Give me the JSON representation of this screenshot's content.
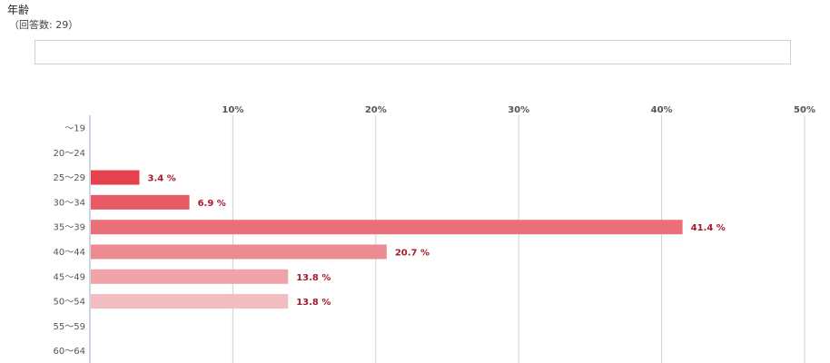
{
  "header": {
    "title": "年齢",
    "subtitle": "（回答数: 29）"
  },
  "colors": {
    "bars": [
      "#e2303d",
      "#e2303d",
      "#e4424f",
      "#e75a66",
      "#ea6f78",
      "#ed8b92",
      "#f0a4a9",
      "#f3bcc0",
      "#f3bcc0",
      "#f3bcc0"
    ],
    "label": "#a8182a",
    "grid": "#d0d0d0"
  },
  "chart_data": {
    "type": "bar",
    "orientation": "horizontal",
    "categories": [
      "～19",
      "20～24",
      "25～29",
      "30～34",
      "35～39",
      "40～44",
      "45～49",
      "50～54",
      "55～59",
      "60～64"
    ],
    "values": [
      0,
      0,
      3.4,
      6.9,
      41.4,
      20.7,
      13.8,
      13.8,
      0,
      0
    ],
    "data_labels": [
      "",
      "",
      "3.4 %",
      "6.9 %",
      "41.4 %",
      "20.7 %",
      "13.8 %",
      "13.8 %",
      "",
      ""
    ],
    "xlim": [
      0,
      50
    ],
    "xticks": [
      "10%",
      "20%",
      "30%",
      "40%",
      "50%"
    ],
    "xtick_values": [
      10,
      20,
      30,
      40,
      50
    ],
    "grid": true
  }
}
